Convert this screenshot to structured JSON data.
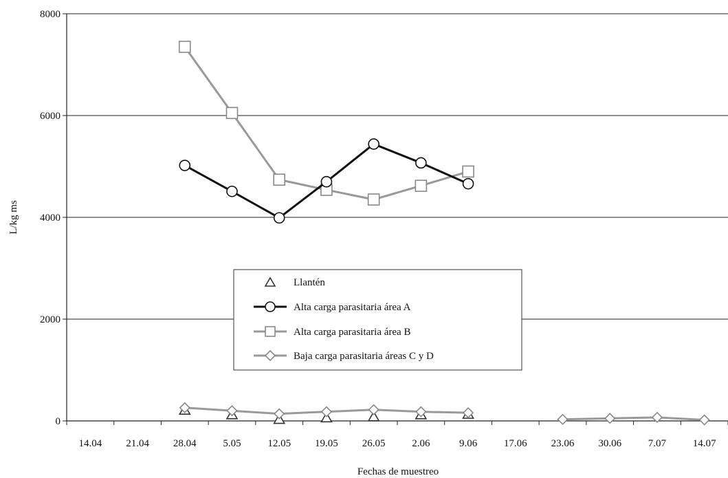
{
  "chart_data": {
    "type": "line",
    "title": "",
    "xlabel": "Fechas de muestreo",
    "ylabel": "L/kg ms",
    "ylim": [
      0,
      8000
    ],
    "yticks": [
      0,
      2000,
      4000,
      6000,
      8000
    ],
    "grid": true,
    "legend_position": "center-left",
    "categories": [
      "14.04",
      "21.04",
      "28.04",
      "5.05",
      "12.05",
      "19.05",
      "26.05",
      "2.06",
      "9.06",
      "17.06",
      "23.06",
      "30.06",
      "7.07",
      "14.07"
    ],
    "series": [
      {
        "name": "Llantén",
        "marker": "triangle",
        "line": false,
        "color": "#555555",
        "values": [
          null,
          null,
          200,
          110,
          20,
          50,
          70,
          110,
          120,
          null,
          null,
          null,
          null,
          null
        ]
      },
      {
        "name": "Alta carga parasitaria área A",
        "marker": "circle",
        "line": true,
        "color": "#111111",
        "values": [
          null,
          null,
          5020,
          4510,
          3990,
          4700,
          5440,
          5070,
          4660,
          null,
          null,
          null,
          null,
          null
        ]
      },
      {
        "name": "Alta carga parasitaria área B",
        "marker": "square",
        "line": true,
        "color": "#999999",
        "values": [
          null,
          null,
          7350,
          6050,
          4740,
          4540,
          4350,
          4620,
          4900,
          null,
          null,
          null,
          null,
          null
        ]
      },
      {
        "name": "Baja carga parasitaria áreas C y D",
        "marker": "diamond",
        "line": true,
        "color": "#999999",
        "values": [
          null,
          null,
          260,
          200,
          140,
          180,
          220,
          180,
          160,
          null,
          30,
          50,
          70,
          20
        ]
      }
    ]
  }
}
